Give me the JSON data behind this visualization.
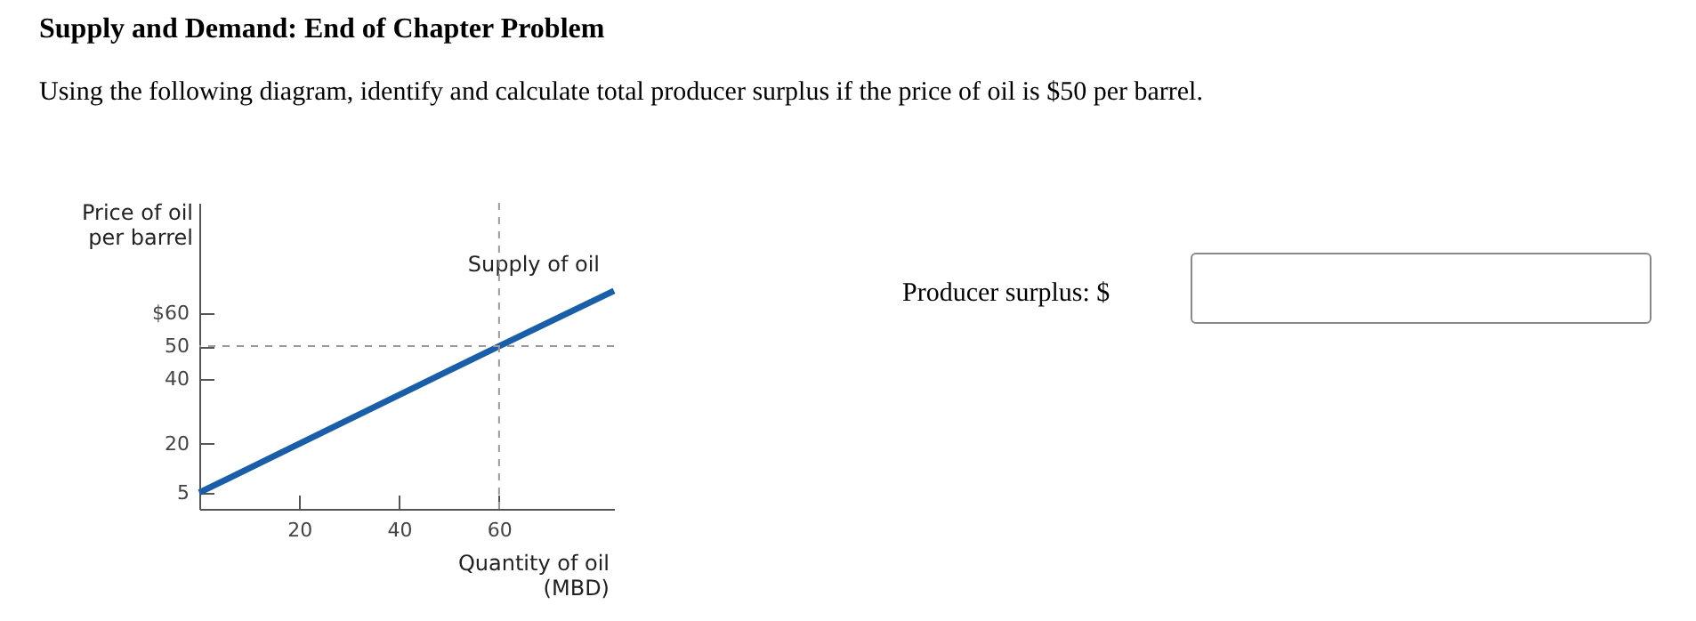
{
  "chart_data": {
    "type": "line",
    "title": "Supply and Demand: End of Chapter Problem",
    "subtitle": "Using the following diagram, identify and calculate total producer surplus if the price of oil is $50 per barrel.",
    "xlabel": "Quantity of oil\n(MBD)",
    "ylabel": "Price of oil\nper barrel",
    "x": [
      0,
      60,
      83
    ],
    "series": [
      {
        "name": "Supply of oil",
        "color": "#1a5ea8",
        "values": [
          5,
          50,
          67
        ]
      }
    ],
    "xlim": [
      0,
      83
    ],
    "ylim": [
      0,
      94
    ],
    "xticks": [
      20,
      40,
      60
    ],
    "yticks": [
      5,
      20,
      40,
      50,
      {
        "value": 60,
        "label": "$60"
      }
    ],
    "ref_lines": [
      {
        "axis": "y",
        "value": 50,
        "line_style": "dashed",
        "color": "#999999"
      },
      {
        "axis": "x",
        "value": 60,
        "line_style": "dashed",
        "color": "#999999"
      }
    ],
    "annotations": [
      "Producer surplus: $"
    ],
    "grid": false,
    "marker": "none",
    "line_style": "solid"
  }
}
